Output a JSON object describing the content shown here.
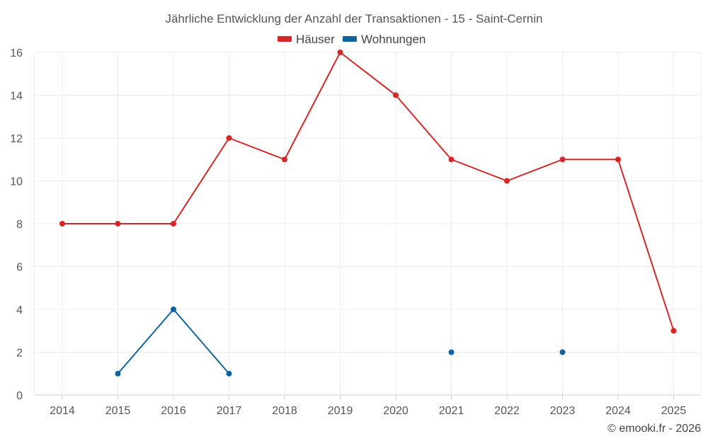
{
  "chart_data": {
    "type": "line",
    "title": "Jährliche Entwicklung der Anzahl der Transaktionen - 15 - Saint-Cernin",
    "categories": [
      "2014",
      "2015",
      "2016",
      "2017",
      "2018",
      "2019",
      "2020",
      "2021",
      "2022",
      "2023",
      "2024",
      "2025"
    ],
    "series": [
      {
        "name": "Häuser",
        "color": "#d62728",
        "values": [
          8,
          8,
          8,
          12,
          11,
          16,
          14,
          11,
          10,
          11,
          11,
          3
        ]
      },
      {
        "name": "Wohnungen",
        "color": "#0f64a0",
        "values": [
          null,
          1,
          4,
          1,
          null,
          null,
          null,
          2,
          null,
          2,
          null,
          null
        ]
      }
    ],
    "yticks": [
      "0",
      "2",
      "4",
      "6",
      "8",
      "10",
      "12",
      "14",
      "16"
    ],
    "ylim": [
      0,
      16
    ],
    "xlabel": "",
    "ylabel": "",
    "grid": true,
    "legend": "top-center"
  },
  "credit": "© emooki.fr - 2026"
}
